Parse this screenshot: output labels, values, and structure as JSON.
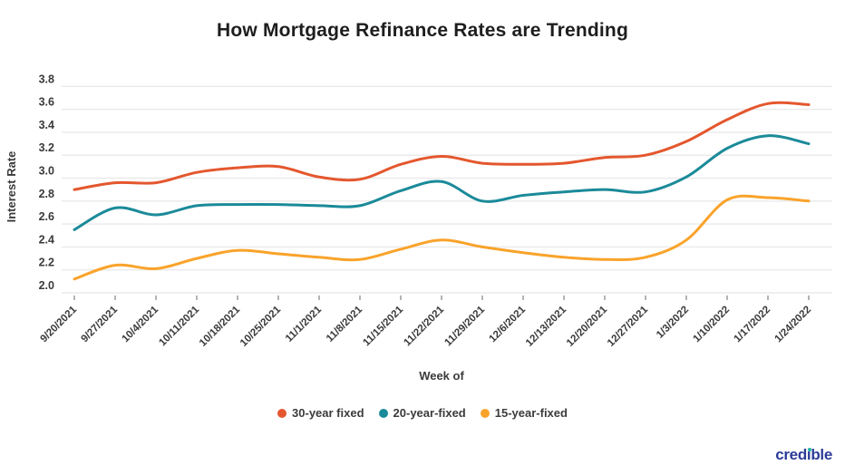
{
  "chart_data": {
    "type": "line",
    "title": "How Mortgage Refinance Rates are Trending",
    "xlabel": "Week of",
    "ylabel": "Interest Rate",
    "categories": [
      "9/20/2021",
      "9/27/2021",
      "10/4/2021",
      "10/11/2021",
      "10/18/2021",
      "10/25/2021",
      "11/1/2021",
      "11/8/2021",
      "11/15/2021",
      "11/22/2021",
      "11/29/2021",
      "12/6/2021",
      "12/13/2021",
      "12/20/2021",
      "12/27/2021",
      "1/3/2022",
      "1/10/2022",
      "1/17/2022",
      "1/24/2022"
    ],
    "series": [
      {
        "name": "30-year fixed",
        "color": "#E4572E",
        "values": [
          2.9,
          2.96,
          2.96,
          3.05,
          3.09,
          3.1,
          3.01,
          2.99,
          3.12,
          3.19,
          3.13,
          3.12,
          3.13,
          3.18,
          3.2,
          3.32,
          3.51,
          3.65,
          3.64
        ]
      },
      {
        "name": "20-year-fixed",
        "color": "#1B8A99",
        "values": [
          2.55,
          2.74,
          2.68,
          2.76,
          2.77,
          2.77,
          2.76,
          2.76,
          2.89,
          2.97,
          2.8,
          2.85,
          2.88,
          2.9,
          2.88,
          3.01,
          3.26,
          3.37,
          3.3
        ]
      },
      {
        "name": "15-year-fixed",
        "color": "#F9A32B",
        "values": [
          2.12,
          2.24,
          2.21,
          2.3,
          2.37,
          2.34,
          2.31,
          2.29,
          2.38,
          2.46,
          2.4,
          2.35,
          2.31,
          2.29,
          2.31,
          2.46,
          2.81,
          2.83,
          2.8
        ]
      }
    ],
    "y_ticks": [
      3.8,
      3.6,
      3.4,
      3.2,
      3.0,
      2.8,
      2.6,
      2.4,
      2.2,
      2.0
    ],
    "ylim": [
      2.0,
      3.8
    ],
    "grid": true,
    "legend_position": "bottom"
  },
  "branding": {
    "logo_text": "credible",
    "logo_color": "#2C3C97",
    "logo_dot_color": "#1FB6A6"
  },
  "style": {
    "grid_color": "#EAEAEA",
    "tick_color": "#9a9a9a",
    "label_color": "#3a3a3a"
  }
}
